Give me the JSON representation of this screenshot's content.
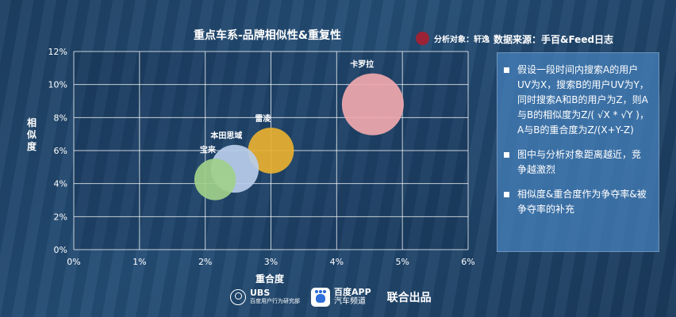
{
  "chart_data": {
    "type": "scatter",
    "title": "重点车系-品牌相似性&重复性",
    "xlabel": "重合度",
    "ylabel": "相似度",
    "xlim": [
      0,
      6
    ],
    "ylim": [
      0,
      12
    ],
    "x_ticks": [
      "0%",
      "1%",
      "2%",
      "3%",
      "4%",
      "5%",
      "6%"
    ],
    "y_ticks": [
      "0%",
      "2%",
      "4%",
      "6%",
      "8%",
      "10%",
      "12%"
    ],
    "grid": true,
    "legend": {
      "label": "分析对象：轩逸",
      "color": "#9b2335",
      "placement": "top-right"
    },
    "points": [
      {
        "label": "卡罗拉",
        "x": 4.55,
        "y": 8.8,
        "size": 1.0,
        "color": "#f0a8ae"
      },
      {
        "label": "雷凌",
        "x": 3.0,
        "y": 6.0,
        "size": 0.55,
        "color": "#e8b030"
      },
      {
        "label": "本田思域",
        "x": 2.45,
        "y": 4.9,
        "size": 0.6,
        "color": "#b8cdea"
      },
      {
        "label": "宝来",
        "x": 2.15,
        "y": 4.25,
        "size": 0.45,
        "color": "#9fd08a"
      }
    ]
  },
  "source": "数据来源：手百&Feed日志",
  "notes": [
    "假设一段时间内搜索A的用户UV为X，搜索B的用户UV为Y，同时搜索A和B的用户为Z，则A与B的相似度为Z/( √X * √Y )，A与B的重合度为Z/(X+Y-Z)",
    "图中与分析对象距离越近，竞争越激烈",
    "相似度&重合度作为争夺率&被争夺率的补充"
  ],
  "footer": {
    "ubs_name": "UBS",
    "ubs_sub": "百度用户行为研究部",
    "baidu_name": "百度APP",
    "baidu_sub": "汽车频道",
    "joint": "联合出品"
  }
}
